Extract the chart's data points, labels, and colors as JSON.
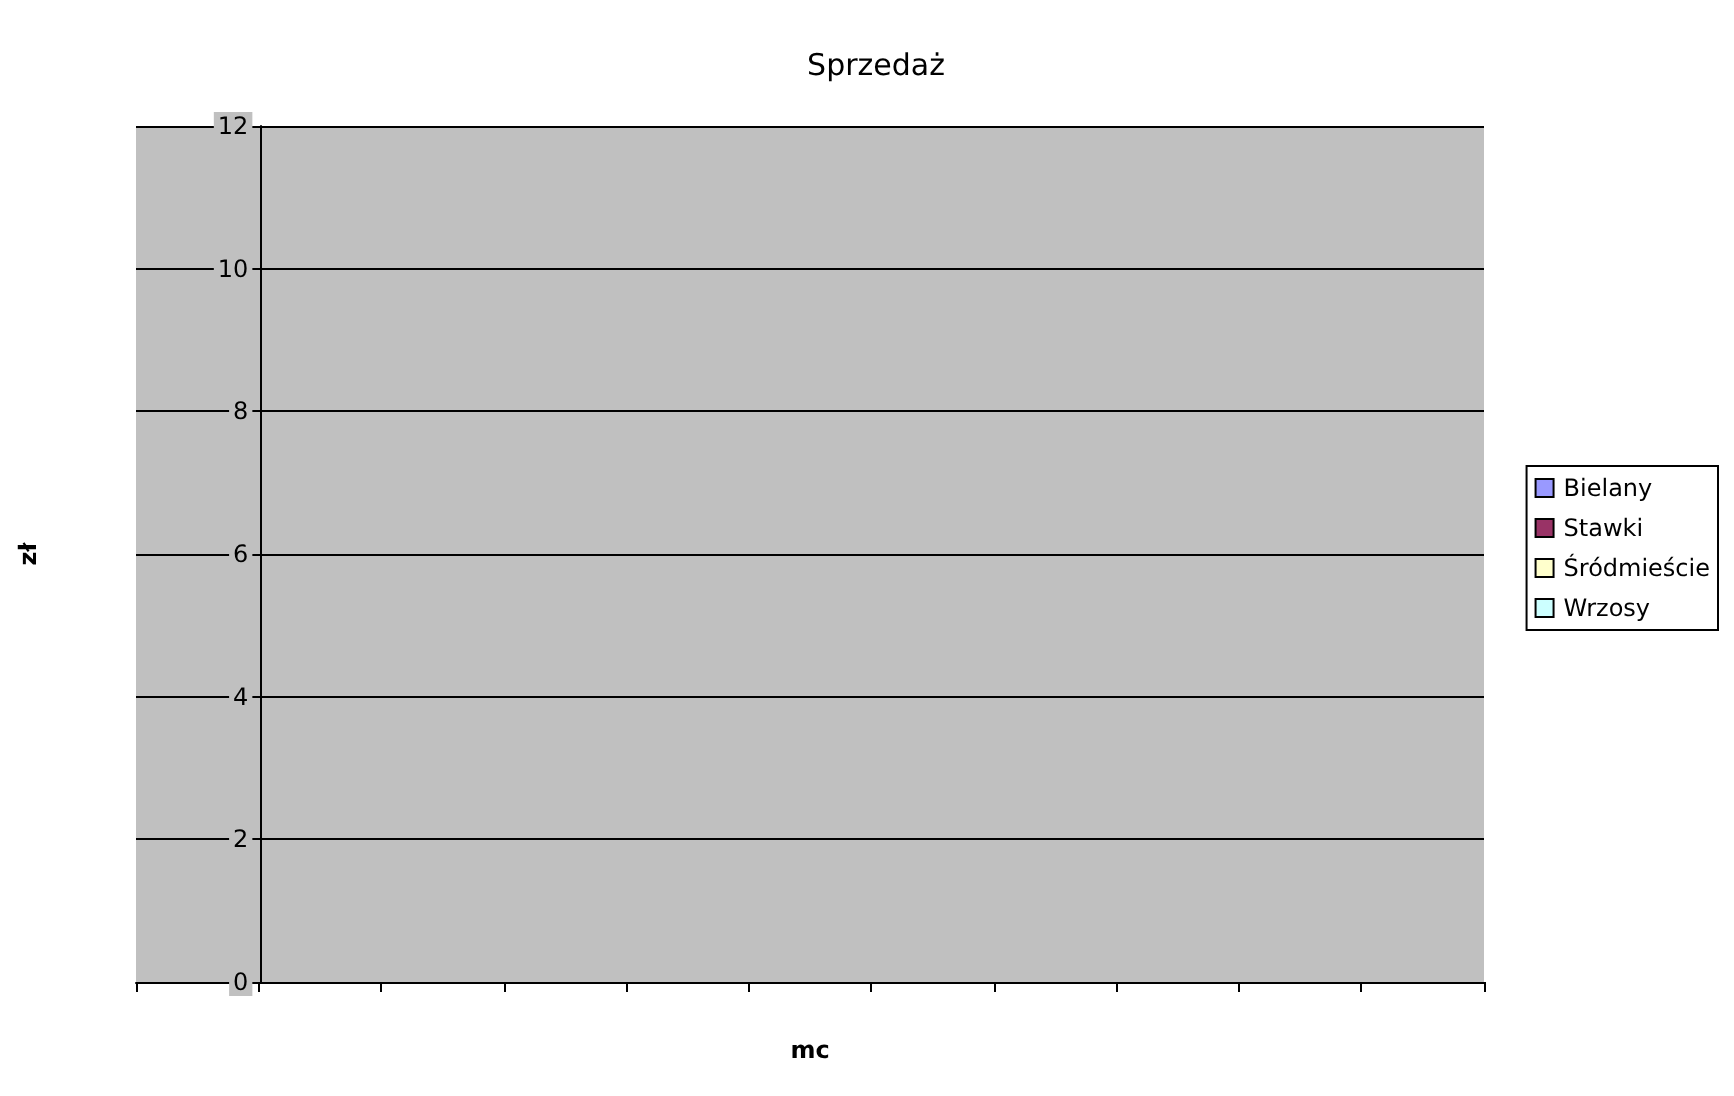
{
  "chart_data": {
    "type": "bar",
    "title": "Sprzedaż",
    "xlabel": "mc",
    "ylabel": "zł",
    "categories": [
      null,
      null,
      null,
      null,
      null,
      null,
      null,
      null,
      null,
      null,
      null
    ],
    "series": [
      {
        "name": "Bielany",
        "color": "#9999ff",
        "values": [
          null,
          null,
          null,
          null,
          null,
          null,
          null,
          null,
          null,
          null,
          null
        ]
      },
      {
        "name": "Stawki",
        "color": "#993366",
        "values": [
          null,
          null,
          null,
          null,
          null,
          null,
          null,
          null,
          null,
          null,
          null
        ]
      },
      {
        "name": "Śródmieście",
        "color": "#ffffcc",
        "values": [
          null,
          null,
          null,
          null,
          null,
          null,
          null,
          null,
          null,
          null,
          null
        ]
      },
      {
        "name": "Wrzosy",
        "color": "#ccffff",
        "values": [
          null,
          null,
          null,
          null,
          null,
          null,
          null,
          null,
          null,
          null,
          null
        ]
      }
    ],
    "ylim": [
      0,
      12
    ],
    "yticks": [
      0,
      2,
      4,
      6,
      8,
      10,
      12
    ],
    "grid": "y",
    "legend": "right"
  }
}
